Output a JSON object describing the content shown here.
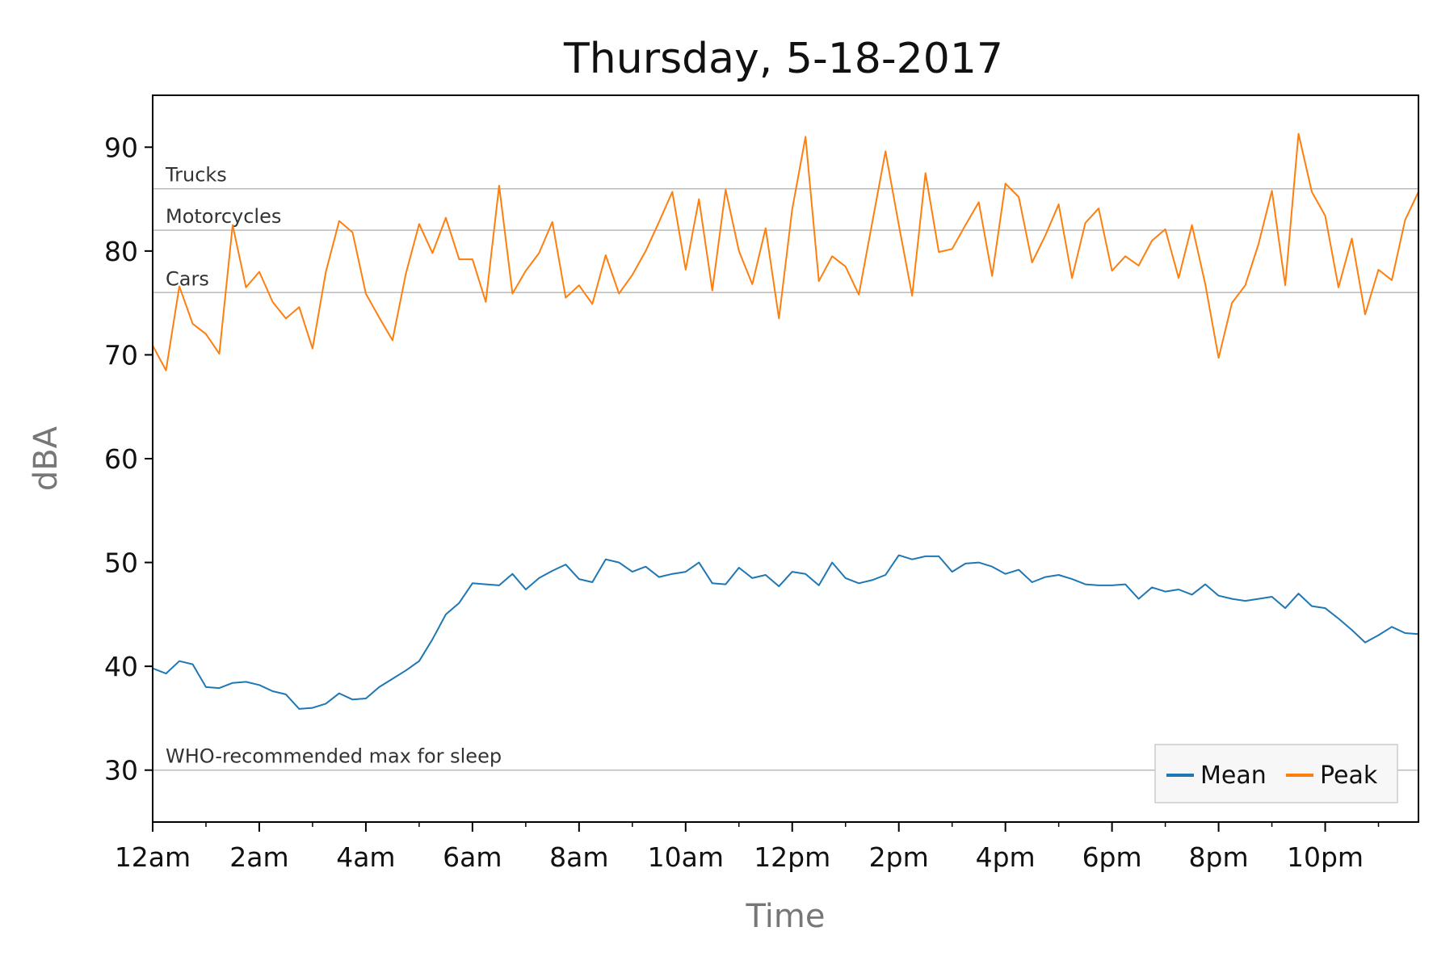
{
  "chart_data": {
    "type": "line",
    "title": "Thursday, 5-18-2017",
    "xlabel": "Time",
    "ylabel": "dBA",
    "ylim": [
      25,
      95
    ],
    "yticks": [
      30,
      40,
      50,
      60,
      70,
      80,
      90
    ],
    "xlim_hours": [
      0,
      23.75
    ],
    "xticks": [
      {
        "hour": 0,
        "label": "12am"
      },
      {
        "hour": 2,
        "label": "2am"
      },
      {
        "hour": 4,
        "label": "4am"
      },
      {
        "hour": 6,
        "label": "6am"
      },
      {
        "hour": 8,
        "label": "8am"
      },
      {
        "hour": 10,
        "label": "10am"
      },
      {
        "hour": 12,
        "label": "12pm"
      },
      {
        "hour": 14,
        "label": "2pm"
      },
      {
        "hour": 16,
        "label": "4pm"
      },
      {
        "hour": 18,
        "label": "6pm"
      },
      {
        "hour": 20,
        "label": "8pm"
      },
      {
        "hour": 22,
        "label": "10pm"
      }
    ],
    "minor_xticks_hours": [
      1,
      3,
      5,
      7,
      9,
      11,
      13,
      15,
      17,
      19,
      21,
      23
    ],
    "x_step_hours": 0.25,
    "reference_lines": [
      {
        "value": 86,
        "label": "Trucks"
      },
      {
        "value": 82,
        "label": "Motorcycles"
      },
      {
        "value": 76,
        "label": "Cars"
      },
      {
        "value": 30,
        "label": "WHO-recommended max for sleep"
      }
    ],
    "legend_position": "lower-right",
    "grid": false,
    "series": [
      {
        "name": "Mean",
        "color": "#1f77b4",
        "values": [
          39.8,
          39.3,
          40.5,
          40.2,
          38.0,
          37.9,
          38.4,
          38.5,
          38.2,
          37.6,
          37.3,
          35.9,
          36.0,
          36.4,
          37.4,
          36.8,
          36.9,
          38.0,
          38.8,
          39.6,
          40.5,
          42.6,
          45.0,
          46.1,
          48.0,
          47.9,
          47.8,
          48.9,
          47.4,
          48.5,
          49.2,
          49.8,
          48.4,
          48.1,
          50.3,
          50.0,
          49.1,
          49.6,
          48.6,
          48.9,
          49.1,
          50.0,
          48.0,
          47.9,
          49.5,
          48.5,
          48.8,
          47.7,
          49.1,
          48.9,
          47.8,
          50.0,
          48.5,
          48.0,
          48.3,
          48.8,
          50.7,
          50.3,
          50.6,
          50.6,
          49.1,
          49.9,
          50.0,
          49.6,
          48.9,
          49.3,
          48.1,
          48.6,
          48.8,
          48.4,
          47.9,
          47.8,
          47.8,
          47.9,
          46.5,
          47.6,
          47.2,
          47.4,
          46.9,
          47.9,
          46.8,
          46.5,
          46.3,
          46.5,
          46.7,
          45.6,
          47.0,
          45.8,
          45.6,
          44.6,
          43.5,
          42.3,
          43.0,
          43.8,
          43.2,
          43.1
        ]
      },
      {
        "name": "Peak",
        "color": "#ff7f0e",
        "values": [
          70.9,
          68.5,
          76.6,
          73.0,
          72.0,
          70.1,
          82.5,
          76.5,
          78.0,
          75.1,
          73.5,
          74.6,
          70.6,
          78.0,
          82.9,
          81.8,
          75.9,
          73.6,
          71.4,
          77.8,
          82.6,
          79.8,
          83.2,
          79.2,
          79.2,
          75.1,
          86.3,
          75.9,
          78.1,
          79.8,
          82.8,
          75.5,
          76.7,
          74.9,
          79.6,
          75.9,
          77.7,
          80.0,
          82.8,
          85.7,
          78.2,
          85.0,
          76.2,
          85.9,
          80.0,
          76.8,
          82.2,
          73.5,
          84.0,
          91.0,
          77.1,
          79.5,
          78.5,
          75.8,
          82.7,
          89.6,
          82.5,
          75.7,
          87.5,
          79.9,
          80.2,
          82.5,
          84.7,
          77.6,
          86.5,
          85.2,
          78.9,
          81.5,
          84.5,
          77.4,
          82.7,
          84.1,
          78.1,
          79.5,
          78.6,
          81.0,
          82.1,
          77.4,
          82.5,
          76.8,
          69.7,
          75.0,
          76.7,
          80.7,
          85.8,
          76.7,
          91.3,
          85.7,
          83.4,
          76.5,
          81.2,
          73.9,
          78.2,
          77.2,
          83.0,
          85.7
        ]
      }
    ]
  }
}
